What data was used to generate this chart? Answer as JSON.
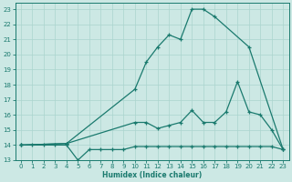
{
  "xlabel": "Humidex (Indice chaleur)",
  "xlim": [
    -0.5,
    23.5
  ],
  "ylim": [
    13,
    23.4
  ],
  "xticks": [
    0,
    1,
    2,
    3,
    4,
    5,
    6,
    7,
    8,
    9,
    10,
    11,
    12,
    13,
    14,
    15,
    16,
    17,
    18,
    19,
    20,
    21,
    22,
    23
  ],
  "yticks": [
    13,
    14,
    15,
    16,
    17,
    18,
    19,
    20,
    21,
    22,
    23
  ],
  "background_color": "#cce8e4",
  "grid_color": "#aad4ce",
  "line_color": "#1a7a6e",
  "series": [
    {
      "x": [
        0,
        1,
        2,
        3,
        4,
        5,
        6,
        7,
        8,
        9,
        10,
        11,
        12,
        13,
        14,
        15,
        16,
        17,
        18,
        19,
        20,
        21,
        22,
        23
      ],
      "y": [
        14.0,
        14.0,
        14.0,
        14.0,
        14.0,
        13.0,
        13.7,
        13.7,
        13.7,
        13.7,
        13.9,
        13.9,
        13.9,
        13.9,
        13.9,
        13.9,
        13.9,
        13.9,
        13.9,
        13.9,
        13.9,
        13.9,
        13.9,
        13.7
      ]
    },
    {
      "x": [
        0,
        4,
        10,
        11,
        12,
        13,
        14,
        15,
        16,
        17,
        18,
        19,
        20,
        21,
        22,
        23
      ],
      "y": [
        14.0,
        14.1,
        15.5,
        15.5,
        15.1,
        15.3,
        15.5,
        16.3,
        15.5,
        15.5,
        16.2,
        18.2,
        16.2,
        16.0,
        15.0,
        13.7
      ]
    },
    {
      "x": [
        0,
        4,
        10,
        11,
        12,
        13,
        14,
        15,
        16,
        17,
        20,
        23
      ],
      "y": [
        14.0,
        14.1,
        17.7,
        19.5,
        20.5,
        21.3,
        21.0,
        23.0,
        23.0,
        22.5,
        20.5,
        13.7
      ]
    }
  ]
}
